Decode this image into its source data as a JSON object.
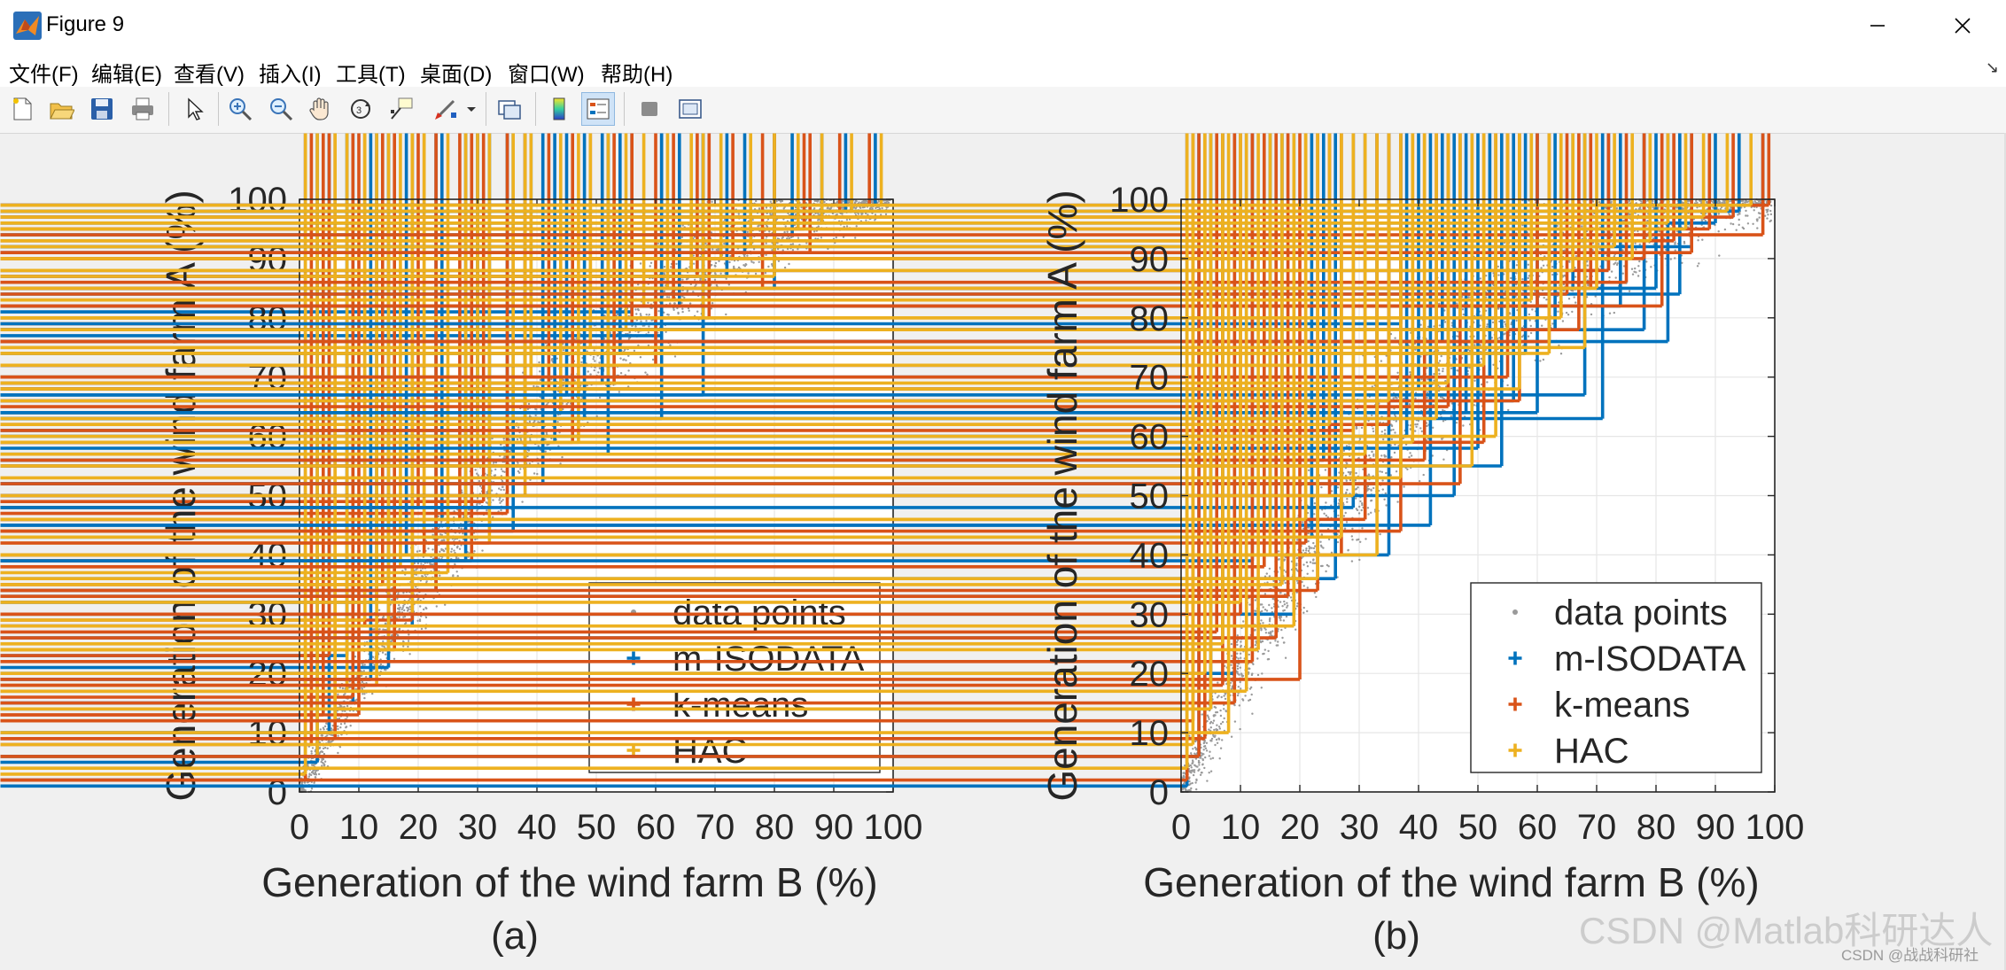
{
  "window": {
    "title": "Figure 9"
  },
  "menu": [
    "文件(F)",
    "编辑(E)",
    "查看(V)",
    "插入(I)",
    "工具(T)",
    "桌面(D)",
    "窗口(W)",
    "帮助(H)"
  ],
  "toolbar": [
    "new-figure-icon",
    "open-file-icon",
    "save-icon",
    "print-icon",
    "select-arrow-icon",
    "zoom-in-icon",
    "zoom-out-icon",
    "pan-hand-icon",
    "rotate-3d-icon",
    "data-cursor-icon",
    "brush-icon",
    "link-plot-icon",
    "colorbar-icon",
    "legend-icon",
    "hide-plot-tools-icon",
    "show-plot-tools-icon"
  ],
  "colors": {
    "data": "#9a9a9a",
    "m-ISODATA": "#0072BD",
    "k-means": "#D95319",
    "HAC": "#EDB120"
  },
  "watermark": "CSDN @Matlab科研达人",
  "watermark_small": "CSDN @战战科研社",
  "chart_data": [
    {
      "type": "scatter",
      "caption": "(a)",
      "xlabel": "Generation of the wind farm B (%)",
      "ylabel": "Generation of the wind farm A (%)",
      "xlim": [
        0,
        100
      ],
      "ylim": [
        0,
        100
      ],
      "xticks": [
        0,
        10,
        20,
        30,
        40,
        50,
        60,
        70,
        80,
        90,
        100
      ],
      "yticks": [
        0,
        10,
        20,
        30,
        40,
        50,
        60,
        70,
        80,
        90,
        100
      ],
      "grid": true,
      "legend": {
        "placement": "bottom-right",
        "entries": [
          "data points",
          "m-ISODATA",
          "k-means",
          "HAC"
        ]
      },
      "background_cloud": {
        "name": "data points",
        "trend": "y = 100*(1-(1-x/100)^1.9)",
        "spread_pct": 7
      },
      "series": [
        {
          "name": "m-ISODATA",
          "points": [
            [
              1,
              2
            ],
            [
              3,
              5
            ],
            [
              5,
              10
            ],
            [
              8,
              23
            ],
            [
              9,
              15
            ],
            [
              12,
              19
            ],
            [
              13,
              32
            ],
            [
              15,
              21
            ],
            [
              18,
              40
            ],
            [
              19,
              28
            ],
            [
              23,
              34
            ],
            [
              24,
              46
            ],
            [
              28,
              39
            ],
            [
              30,
              61
            ],
            [
              32,
              48
            ],
            [
              35,
              56
            ],
            [
              36,
              44
            ],
            [
              38,
              64
            ],
            [
              39,
              72
            ],
            [
              41,
              52
            ],
            [
              43,
              59
            ],
            [
              45,
              67
            ],
            [
              48,
              63
            ],
            [
              51,
              69
            ],
            [
              52,
              57
            ],
            [
              54,
              74
            ],
            [
              56,
              81
            ],
            [
              61,
              77
            ],
            [
              61,
              63
            ],
            [
              64,
              82
            ],
            [
              68,
              78
            ],
            [
              68,
              67
            ],
            [
              72,
              87
            ],
            [
              75,
              91
            ],
            [
              80,
              85
            ],
            [
              83,
              94
            ],
            [
              88,
              97
            ],
            [
              92,
              98
            ],
            [
              97,
              99
            ]
          ]
        },
        {
          "name": "k-means",
          "points": [
            [
              1,
              2
            ],
            [
              2,
              8
            ],
            [
              4,
              13
            ],
            [
              5,
              23
            ],
            [
              6,
              9
            ],
            [
              9,
              16
            ],
            [
              10,
              13
            ],
            [
              11,
              28
            ],
            [
              14,
              35
            ],
            [
              16,
              24
            ],
            [
              19,
              29
            ],
            [
              20,
              48
            ],
            [
              21,
              40
            ],
            [
              23,
              34
            ],
            [
              27,
              46
            ],
            [
              29,
              39
            ],
            [
              31,
              49
            ],
            [
              35,
              47
            ],
            [
              38,
              56
            ],
            [
              42,
              68
            ],
            [
              46,
              59
            ],
            [
              49,
              76
            ],
            [
              53,
              69
            ],
            [
              56,
              79
            ],
            [
              60,
              72
            ],
            [
              63,
              83
            ],
            [
              67,
              87
            ],
            [
              69,
              80
            ],
            [
              73,
              90
            ],
            [
              78,
              85
            ],
            [
              80,
              92
            ],
            [
              85,
              95
            ],
            [
              86,
              91
            ],
            [
              91,
              98
            ],
            [
              96,
              99
            ]
          ]
        },
        {
          "name": "HAC",
          "points": [
            [
              1,
              3
            ],
            [
              3,
              6
            ],
            [
              6,
              12
            ],
            [
              8,
              17
            ],
            [
              11,
              29
            ],
            [
              13,
              18
            ],
            [
              15,
              24
            ],
            [
              17,
              38
            ],
            [
              19,
              30
            ],
            [
              21,
              44
            ],
            [
              25,
              37
            ],
            [
              28,
              46
            ],
            [
              30,
              55
            ],
            [
              32,
              42
            ],
            [
              36,
              63
            ],
            [
              38,
              50
            ],
            [
              39,
              70
            ],
            [
              44,
              64
            ],
            [
              47,
              59
            ],
            [
              49,
              75
            ],
            [
              52,
              70
            ],
            [
              55,
              78
            ],
            [
              58,
              82
            ],
            [
              62,
              85
            ],
            [
              66,
              88
            ],
            [
              68,
              80
            ],
            [
              71,
              90
            ],
            [
              76,
              92
            ],
            [
              80,
              87
            ],
            [
              84,
              95
            ],
            [
              88,
              96
            ],
            [
              93,
              98
            ],
            [
              98,
              99
            ]
          ]
        }
      ]
    },
    {
      "type": "scatter",
      "caption": "(b)",
      "xlabel": "Generation of the wind farm B (%)",
      "ylabel": "Generation of the wind farm A (%)",
      "xlim": [
        0,
        100
      ],
      "ylim": [
        0,
        100
      ],
      "xticks": [
        0,
        10,
        20,
        30,
        40,
        50,
        60,
        70,
        80,
        90,
        100
      ],
      "yticks": [
        0,
        10,
        20,
        30,
        40,
        50,
        60,
        70,
        80,
        90,
        100
      ],
      "grid": true,
      "legend": {
        "placement": "bottom-right",
        "entries": [
          "data points",
          "m-ISODATA",
          "k-means",
          "HAC"
        ]
      },
      "background_cloud": {
        "name": "data points",
        "trend": "y = 100*(1-(1-x/100)^2.2)",
        "spread_pct": 10
      },
      "series": [
        {
          "name": "m-ISODATA",
          "points": [
            [
              1,
              1
            ],
            [
              3,
              6
            ],
            [
              5,
              14
            ],
            [
              7,
              26
            ],
            [
              9,
              20
            ],
            [
              11,
              33
            ],
            [
              12,
              39
            ],
            [
              15,
              45
            ],
            [
              17,
              50
            ],
            [
              19,
              30
            ],
            [
              22,
              43
            ],
            [
              24,
              56
            ],
            [
              26,
              36
            ],
            [
              29,
              48
            ],
            [
              31,
              72
            ],
            [
              33,
              52
            ],
            [
              35,
              40
            ],
            [
              37,
              79
            ],
            [
              38,
              60
            ],
            [
              40,
              68
            ],
            [
              42,
              45
            ],
            [
              44,
              76
            ],
            [
              46,
              50
            ],
            [
              48,
              64
            ],
            [
              50,
              58
            ],
            [
              52,
              70
            ],
            [
              54,
              55
            ],
            [
              56,
              66
            ],
            [
              58,
              74
            ],
            [
              60,
              64
            ],
            [
              63,
              78
            ],
            [
              66,
              85
            ],
            [
              68,
              67
            ],
            [
              71,
              63
            ],
            [
              72,
              88
            ],
            [
              74,
              82
            ],
            [
              78,
              78
            ],
            [
              80,
              85
            ],
            [
              82,
              76
            ],
            [
              84,
              84
            ],
            [
              86,
              92
            ],
            [
              90,
              96
            ],
            [
              94,
              98
            ],
            [
              98,
              99
            ]
          ]
        },
        {
          "name": "k-means",
          "points": [
            [
              1,
              2
            ],
            [
              2,
              12
            ],
            [
              3,
              6
            ],
            [
              4,
              9
            ],
            [
              6,
              27
            ],
            [
              7,
              18
            ],
            [
              9,
              15
            ],
            [
              10,
              30
            ],
            [
              12,
              22
            ],
            [
              14,
              38
            ],
            [
              16,
              26
            ],
            [
              18,
              33
            ],
            [
              20,
              19
            ],
            [
              21,
              42
            ],
            [
              23,
              34
            ],
            [
              25,
              50
            ],
            [
              27,
              40
            ],
            [
              29,
              61
            ],
            [
              31,
              46
            ],
            [
              33,
              55
            ],
            [
              35,
              62
            ],
            [
              37,
              44
            ],
            [
              39,
              70
            ],
            [
              41,
              56
            ],
            [
              43,
              72
            ],
            [
              45,
              65
            ],
            [
              47,
              52
            ],
            [
              49,
              68
            ],
            [
              51,
              59
            ],
            [
              53,
              76
            ],
            [
              55,
              70
            ],
            [
              57,
              66
            ],
            [
              60,
              82
            ],
            [
              62,
              76
            ],
            [
              65,
              84
            ],
            [
              67,
              78
            ],
            [
              69,
              85
            ],
            [
              72,
              88
            ],
            [
              75,
              86
            ],
            [
              78,
              90
            ],
            [
              81,
              82
            ],
            [
              83,
              93
            ],
            [
              86,
              91
            ],
            [
              89,
              95
            ],
            [
              93,
              97
            ],
            [
              98,
              94
            ],
            [
              99,
              99
            ]
          ]
        },
        {
          "name": "HAC",
          "points": [
            [
              1,
              4
            ],
            [
              2,
              8
            ],
            [
              4,
              20
            ],
            [
              5,
              14
            ],
            [
              7,
              25
            ],
            [
              8,
              10
            ],
            [
              10,
              32
            ],
            [
              11,
              17
            ],
            [
              13,
              24
            ],
            [
              15,
              40
            ],
            [
              17,
              35
            ],
            [
              19,
              28
            ],
            [
              21,
              46
            ],
            [
              23,
              36
            ],
            [
              25,
              62
            ],
            [
              27,
              43
            ],
            [
              29,
              50
            ],
            [
              31,
              57
            ],
            [
              33,
              40
            ],
            [
              35,
              66
            ],
            [
              37,
              53
            ],
            [
              39,
              59
            ],
            [
              41,
              74
            ],
            [
              43,
              63
            ],
            [
              45,
              69
            ],
            [
              47,
              80
            ],
            [
              49,
              55
            ],
            [
              51,
              72
            ],
            [
              53,
              60
            ],
            [
              55,
              78
            ],
            [
              57,
              68
            ],
            [
              59,
              83
            ],
            [
              62,
              74
            ],
            [
              64,
              80
            ],
            [
              66,
              88
            ],
            [
              68,
              75
            ],
            [
              70,
              85
            ],
            [
              73,
              92
            ],
            [
              76,
              90
            ],
            [
              79,
              93
            ],
            [
              82,
              96
            ],
            [
              85,
              95
            ],
            [
              88,
              97
            ],
            [
              92,
              98
            ],
            [
              96,
              99
            ]
          ]
        }
      ]
    }
  ]
}
